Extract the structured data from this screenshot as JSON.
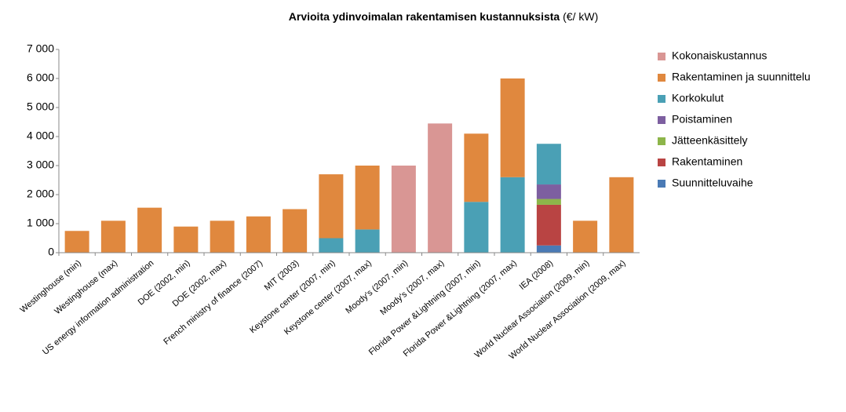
{
  "chart_data": {
    "type": "stacked_bar",
    "title": "Arvioita ydinvoimalan rakentamisen kustannuksista",
    "title_unit": "(€/ kW)",
    "categories": [
      "Westinghouse (min)",
      "Westinghouse (max)",
      "US energy information administration",
      "DOE (2002, min)",
      "DOE (2002, max)",
      "French ministry of finance (2007)",
      "MIT (2003)",
      "Keystone center (2007, min)",
      "Keystone center (2007, max)",
      "Moody's (2007, min)",
      "Moody's (2007, max)",
      "Florida Power &Lightning (2007, min)",
      "Florida Power &Lightning (2007, max)",
      "IEA (2008)",
      "World Nuclear Association (2009, min)",
      "World Nuclear Association (2009, max)"
    ],
    "series": [
      {
        "name": "Suunnitteluvaihe",
        "color": "#4a7ab5",
        "values": [
          null,
          null,
          null,
          null,
          null,
          null,
          null,
          null,
          null,
          null,
          null,
          null,
          null,
          250,
          null,
          null
        ]
      },
      {
        "name": "Rakentaminen",
        "color": "#b94443",
        "values": [
          null,
          null,
          null,
          null,
          null,
          null,
          null,
          null,
          null,
          null,
          null,
          null,
          null,
          1400,
          null,
          null
        ]
      },
      {
        "name": "Jätteenkäsittely",
        "color": "#8db54a",
        "values": [
          null,
          null,
          null,
          null,
          null,
          null,
          null,
          null,
          null,
          null,
          null,
          null,
          null,
          200,
          null,
          null
        ]
      },
      {
        "name": "Poistaminen",
        "color": "#7d5fa0",
        "values": [
          null,
          null,
          null,
          null,
          null,
          null,
          null,
          null,
          null,
          null,
          null,
          null,
          null,
          500,
          null,
          null
        ]
      },
      {
        "name": "Korkokulut",
        "color": "#4aa0b5",
        "values": [
          null,
          null,
          null,
          null,
          null,
          null,
          null,
          500,
          800,
          null,
          null,
          1750,
          2600,
          1400,
          null,
          null
        ]
      },
      {
        "name": "Rakentaminen ja suunnittelu",
        "color": "#e0883e",
        "values": [
          750,
          1100,
          1550,
          900,
          1100,
          1250,
          1500,
          2200,
          2200,
          null,
          null,
          2350,
          3400,
          null,
          1100,
          2600
        ]
      },
      {
        "name": "Kokonaiskustannus",
        "color": "#d99694",
        "values": [
          null,
          null,
          null,
          null,
          null,
          null,
          null,
          null,
          null,
          3000,
          4450,
          null,
          null,
          null,
          null,
          null
        ]
      }
    ],
    "ylim": [
      0,
      7000
    ],
    "yticks": [
      0,
      {
        "value": 1000,
        "label": "1 000"
      },
      {
        "value": 2000,
        "label": "2 000"
      },
      {
        "value": 3000,
        "label": "3 000"
      },
      {
        "value": 4000,
        "label": "4 000"
      },
      {
        "value": 5000,
        "label": "5 000"
      },
      {
        "value": 6000,
        "label": "6 000"
      },
      {
        "value": 7000,
        "label": "7 000"
      }
    ],
    "legend": "right"
  }
}
